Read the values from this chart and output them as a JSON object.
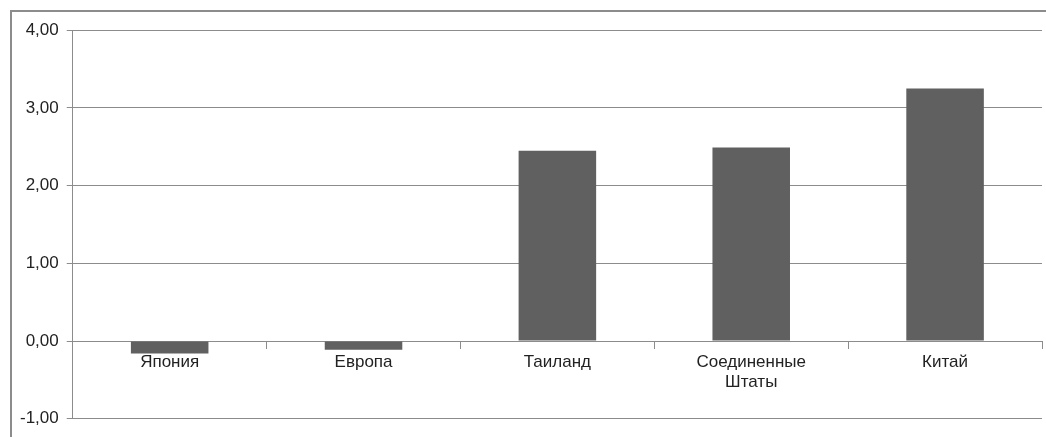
{
  "chart_data": {
    "type": "bar",
    "categories": [
      "Япония",
      "Европа",
      "Таиланд",
      "Соединенные Штаты",
      "Китай"
    ],
    "values": [
      -0.16,
      -0.11,
      2.45,
      2.49,
      3.25
    ],
    "color": "#606060",
    "ylim": [
      -1,
      4
    ],
    "yticks": [
      {
        "value": -1,
        "label": "-1,00"
      },
      {
        "value": 0,
        "label": "0,00"
      },
      {
        "value": 1,
        "label": "1,00"
      },
      {
        "value": 2,
        "label": "2,00"
      },
      {
        "value": 3,
        "label": "3,00"
      },
      {
        "value": 4,
        "label": "4,00"
      }
    ],
    "grid": "y",
    "legend": false
  }
}
